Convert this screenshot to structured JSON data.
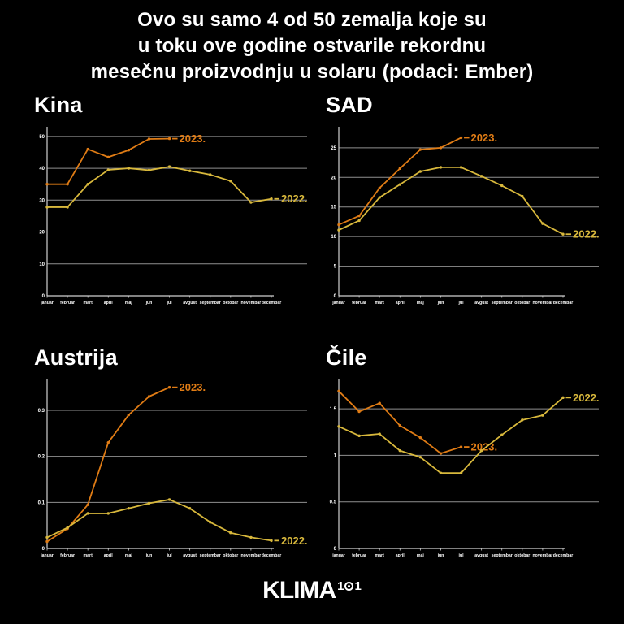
{
  "header": {
    "title_lines": [
      "Ovo su samo 4 od 50 zemalja koje su",
      "u toku ove godine ostvarile rekordnu",
      "mesečnu proizvodnju u solaru (podaci: Ember)"
    ]
  },
  "months": [
    "januar",
    "februar",
    "mart",
    "april",
    "maj",
    "jun",
    "jul",
    "avgust",
    "septembar",
    "oktobar",
    "novembar",
    "decembar"
  ],
  "colors": {
    "background": "#000000",
    "grid": "#909090",
    "axis": "#d0d0d0",
    "tick_text": "#ffffff",
    "series_2023": "#e07c15",
    "series_2022": "#d8b83c"
  },
  "chart_data": [
    {
      "type": "line",
      "title": "Kina",
      "ylim": [
        0,
        52
      ],
      "yticks": [
        "0",
        "10",
        "20",
        "30",
        "40",
        "50"
      ],
      "grid": true,
      "legend_position": "end-of-line",
      "series": [
        {
          "name": "2023.",
          "color": "#e07c15",
          "values": [
            35,
            35,
            46,
            43.5,
            45.7,
            49.2,
            49.3
          ]
        },
        {
          "name": "2022.",
          "color": "#d8b83c",
          "values": [
            27.8,
            27.8,
            35,
            39.5,
            40,
            39.4,
            40.5,
            39.2,
            38,
            36,
            29.3,
            30.4
          ]
        }
      ]
    },
    {
      "type": "line",
      "title": "SAD",
      "ylim": [
        0,
        28
      ],
      "yticks": [
        "0",
        "5",
        "10",
        "15",
        "20",
        "25"
      ],
      "grid": true,
      "legend_position": "end-of-line",
      "series": [
        {
          "name": "2023.",
          "color": "#e07c15",
          "values": [
            12,
            13.5,
            18.2,
            21.5,
            24.7,
            25,
            26.7
          ]
        },
        {
          "name": "2022.",
          "color": "#d8b83c",
          "values": [
            11.1,
            12.7,
            16.6,
            18.8,
            21,
            21.7,
            21.7,
            20.2,
            18.6,
            16.8,
            12.2,
            10.4
          ]
        }
      ]
    },
    {
      "type": "line",
      "title": "Austrija",
      "ylim": [
        0,
        0.36
      ],
      "yticks": [
        "0",
        "0.1",
        "0.2",
        "0.3"
      ],
      "grid": true,
      "legend_position": "end-of-line",
      "series": [
        {
          "name": "2023.",
          "color": "#e07c15",
          "values": [
            0.015,
            0.043,
            0.095,
            0.23,
            0.29,
            0.33,
            0.35
          ]
        },
        {
          "name": "2022.",
          "color": "#d8b83c",
          "values": [
            0.024,
            0.045,
            0.076,
            0.076,
            0.087,
            0.098,
            0.106,
            0.087,
            0.057,
            0.034,
            0.024,
            0.017
          ]
        }
      ]
    },
    {
      "type": "line",
      "title": "Čile",
      "ylim": [
        0,
        1.78
      ],
      "yticks": [
        "0",
        "0.5",
        "1",
        "1.5"
      ],
      "grid": true,
      "legend_position": "end-of-line",
      "series": [
        {
          "name": "2023.",
          "color": "#e07c15",
          "values": [
            1.69,
            1.47,
            1.56,
            1.32,
            1.19,
            1.02,
            1.09
          ]
        },
        {
          "name": "2022.",
          "color": "#d8b83c",
          "values": [
            1.31,
            1.21,
            1.23,
            1.05,
            0.98,
            0.81,
            0.81,
            1.05,
            1.22,
            1.38,
            1.43,
            1.62
          ]
        }
      ]
    }
  ],
  "footer": {
    "brand_main": "KLIMA",
    "brand_sup_prefix": "1",
    "brand_sup_suffix": "1"
  }
}
